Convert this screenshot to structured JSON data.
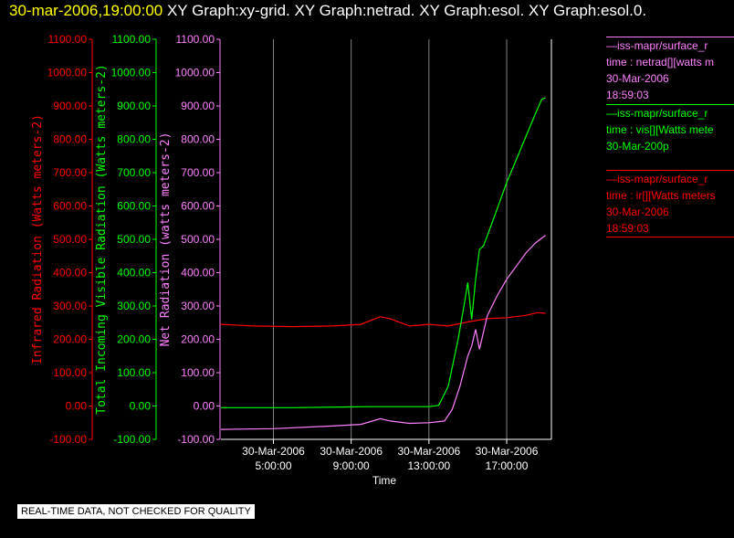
{
  "header": {
    "timestamp": "30-mar-2006,19:00:00",
    "graph_titles": "XY Graph:xy-grid.  XY Graph:netrad.  XY Graph:esol.  XY Graph:esol.0."
  },
  "notice": "REAL-TIME DATA, NOT CHECKED FOR QUALITY",
  "colors": {
    "infrared": "#ff0000",
    "visible": "#00ff00",
    "net": "#ff80ff",
    "grid": "#808080",
    "axis": "#ffffff"
  },
  "chart_data": {
    "type": "line",
    "xlabel": "Time",
    "x_ticks": [
      {
        "value": 5,
        "line1": "30-Mar-2006",
        "line2": "5:00:00"
      },
      {
        "value": 9,
        "line1": "30-Mar-2006",
        "line2": "9:00:00"
      },
      {
        "value": 13,
        "line1": "30-Mar-2006",
        "line2": "13:00:00"
      },
      {
        "value": 17,
        "line1": "30-Mar-2006",
        "line2": "17:00:00"
      }
    ],
    "xlim": [
      2.3,
      19.3
    ],
    "ylim": [
      -100,
      1100
    ],
    "y_ticks": [
      "-100.00",
      "0.00",
      "100.00",
      "200.00",
      "300.00",
      "400.00",
      "500.00",
      "600.00",
      "700.00",
      "800.00",
      "900.00",
      "1000.00",
      "1100.00"
    ],
    "y_axes": [
      {
        "label": "Infrared Radiation (Watts meters-2)",
        "color": "#ff0000"
      },
      {
        "label": "Total Incoming Visible Radiation (Watts meters-2)",
        "color": "#00ff00"
      },
      {
        "label": "Net Radiation (watts meters-2)",
        "color": "#ff80ff"
      }
    ],
    "series": [
      {
        "color": "#ff0000",
        "points": [
          [
            2.3,
            245
          ],
          [
            4,
            240
          ],
          [
            6,
            238
          ],
          [
            8,
            240
          ],
          [
            9.5,
            245
          ],
          [
            10.5,
            268
          ],
          [
            11,
            262
          ],
          [
            12,
            240
          ],
          [
            13,
            245
          ],
          [
            14,
            240
          ],
          [
            15,
            252
          ],
          [
            16,
            262
          ],
          [
            17,
            265
          ],
          [
            18,
            272
          ],
          [
            18.6,
            280
          ],
          [
            19.0,
            278
          ]
        ]
      },
      {
        "color": "#00ff00",
        "points": [
          [
            2.3,
            -5
          ],
          [
            6,
            -5
          ],
          [
            10,
            -2
          ],
          [
            13,
            -2
          ],
          [
            13.5,
            2
          ],
          [
            14,
            60
          ],
          [
            14.5,
            200
          ],
          [
            14.8,
            300
          ],
          [
            15.0,
            370
          ],
          [
            15.2,
            260
          ],
          [
            15.4,
            380
          ],
          [
            15.6,
            470
          ],
          [
            15.8,
            480
          ],
          [
            16.0,
            510
          ],
          [
            16.5,
            590
          ],
          [
            17.0,
            670
          ],
          [
            17.5,
            740
          ],
          [
            18.0,
            810
          ],
          [
            18.5,
            880
          ],
          [
            18.8,
            920
          ],
          [
            19.0,
            925
          ]
        ]
      },
      {
        "color": "#ff80ff",
        "points": [
          [
            2.3,
            -70
          ],
          [
            5,
            -68
          ],
          [
            8,
            -60
          ],
          [
            9.5,
            -55
          ],
          [
            10.5,
            -38
          ],
          [
            11,
            -45
          ],
          [
            12,
            -52
          ],
          [
            13,
            -50
          ],
          [
            13.8,
            -45
          ],
          [
            14.2,
            -10
          ],
          [
            14.6,
            60
          ],
          [
            15.0,
            150
          ],
          [
            15.2,
            180
          ],
          [
            15.4,
            230
          ],
          [
            15.6,
            170
          ],
          [
            16.0,
            270
          ],
          [
            16.5,
            330
          ],
          [
            17.0,
            380
          ],
          [
            17.5,
            420
          ],
          [
            18.0,
            460
          ],
          [
            18.5,
            490
          ],
          [
            19.0,
            512
          ]
        ]
      }
    ]
  },
  "legend": [
    {
      "color": "#ff80ff",
      "lines": [
        "—iss-mapr/surface_r",
        "time : netrad[][watts m",
        "30-Mar-2006",
        "18:59:03"
      ]
    },
    {
      "color": "#00ff00",
      "lines": [
        "—iss-mapr/surface_r",
        "time : vis[][Watts mete",
        "30-Mar-200p"
      ]
    },
    {
      "color": "#ff0000",
      "lines": [
        "—iss-mapr/surface_r",
        "time : ir[][Watts meters",
        "30-Mar-2006",
        "18:59:03"
      ]
    }
  ]
}
